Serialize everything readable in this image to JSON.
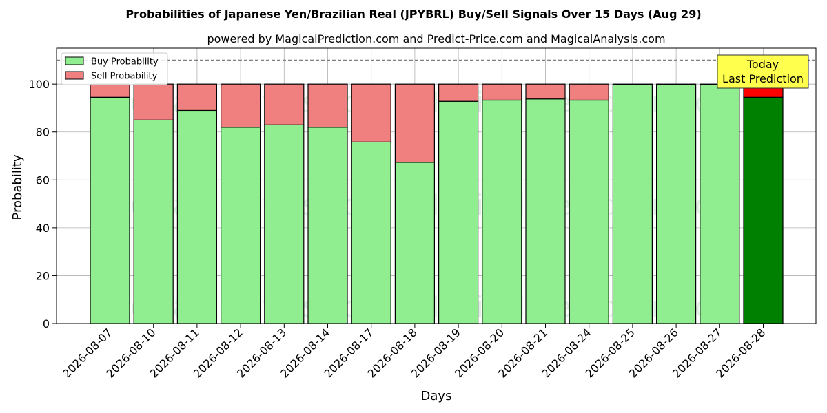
{
  "chart_data": {
    "type": "bar",
    "stacked": true,
    "title": "Probabilities of Japanese Yen/Brazilian Real (JPYBRL) Buy/Sell Signals Over 15 Days (Aug 29)",
    "subtitle": "powered by MagicalPrediction.com and Predict-Price.com and MagicalAnalysis.com",
    "xlabel": "Days",
    "ylabel": "Probability",
    "ylim": [
      0,
      115
    ],
    "yticks": [
      "0",
      "20",
      "40",
      "60",
      "80",
      "100"
    ],
    "reference_line": 110,
    "grid": true,
    "legend_position": "top-left",
    "categories": [
      "2026-08-07",
      "2026-08-10",
      "2026-08-11",
      "2026-08-12",
      "2026-08-13",
      "2026-08-14",
      "2026-08-17",
      "2026-08-18",
      "2026-08-19",
      "2026-08-20",
      "2026-08-21",
      "2026-08-24",
      "2026-08-25",
      "2026-08-26",
      "2026-08-27",
      "2026-08-28"
    ],
    "series": [
      {
        "name": "Buy Probability",
        "color": "#90ee90",
        "highlight_color": "#008000",
        "values": [
          94.5,
          85,
          89,
          82,
          83,
          82,
          75.8,
          67.3,
          92.8,
          93.3,
          93.8,
          93.3,
          99.7,
          99.7,
          99.7,
          94.5
        ]
      },
      {
        "name": "Sell Probability",
        "color": "#f08080",
        "highlight_color": "#ff0000",
        "values": [
          5.5,
          15,
          11,
          18,
          17,
          18,
          24.2,
          32.7,
          7.2,
          6.7,
          6.2,
          6.7,
          0.3,
          0.3,
          0.3,
          5.5
        ]
      }
    ],
    "highlight_index": 15,
    "annotation": {
      "lines": [
        "Today",
        "Last Prediction"
      ],
      "background": "#ffff4d"
    },
    "watermarks": [
      "MagicalAnalysis.com",
      "MagicalPrediction.com"
    ]
  }
}
